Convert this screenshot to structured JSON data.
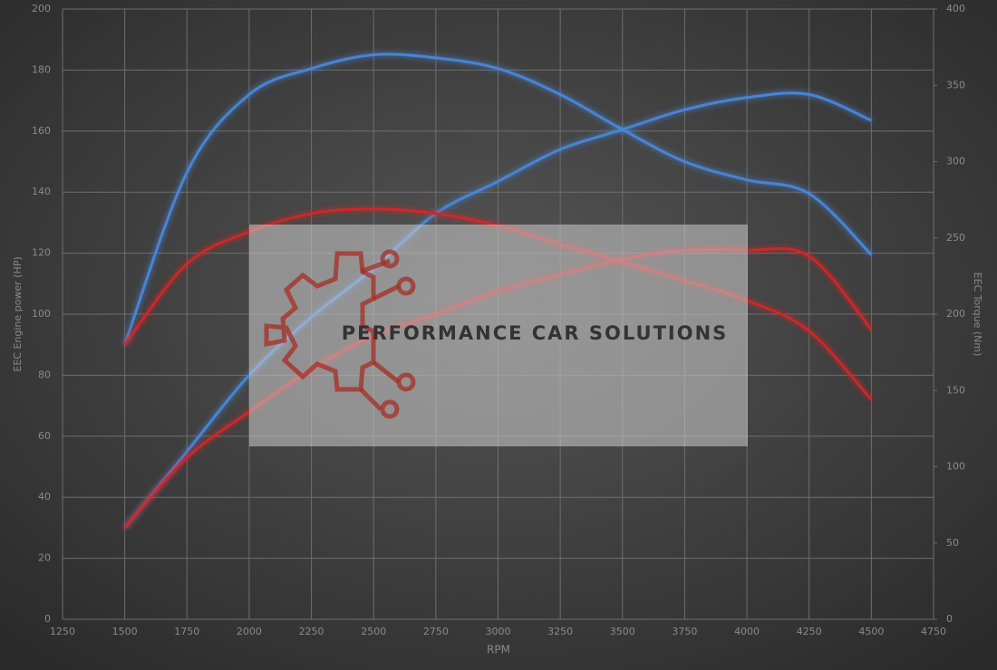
{
  "chart_data": {
    "type": "line",
    "x_label": "RPM",
    "y_label": "EEC Engine power (HP)",
    "y2_label": "EEC Torque (Nm)",
    "watermark": "PERFORMANCE CAR SOLUTIONS",
    "x": [
      1500,
      1750,
      2000,
      2250,
      2500,
      2750,
      3000,
      3250,
      3500,
      3750,
      4000,
      4250,
      4500
    ],
    "xlim": [
      1250,
      4750
    ],
    "xticks": [
      1250,
      1500,
      1750,
      2000,
      2250,
      2500,
      2750,
      3000,
      3250,
      3500,
      3750,
      4000,
      4250,
      4500,
      4750
    ],
    "ylim": [
      0,
      200
    ],
    "yticks": [
      0,
      20,
      40,
      60,
      80,
      100,
      120,
      140,
      160,
      180,
      200
    ],
    "y2lim": [
      0,
      400
    ],
    "y2ticks": [
      0,
      50,
      100,
      150,
      200,
      250,
      300,
      350,
      400
    ],
    "grid": true,
    "series": [
      {
        "color": "#4a88dc",
        "values": [
          30,
          55,
          80,
          99,
          115,
          133,
          143.5,
          154,
          160.5,
          167,
          171,
          172,
          163.5
        ]
      },
      {
        "color": "#4a88dc",
        "axis": "y2",
        "values": [
          180,
          293,
          344,
          361,
          370,
          368,
          361,
          344,
          321,
          300,
          288,
          279,
          239
        ]
      },
      {
        "color": "#d42828",
        "values": [
          30,
          53,
          68,
          82,
          93,
          100,
          107.5,
          113,
          118,
          121,
          121,
          119,
          95
        ]
      },
      {
        "color": "#d42828",
        "axis": "y2",
        "values": [
          180,
          233,
          254,
          266,
          269,
          266,
          258,
          246,
          234,
          222,
          209,
          189,
          144
        ]
      }
    ]
  }
}
